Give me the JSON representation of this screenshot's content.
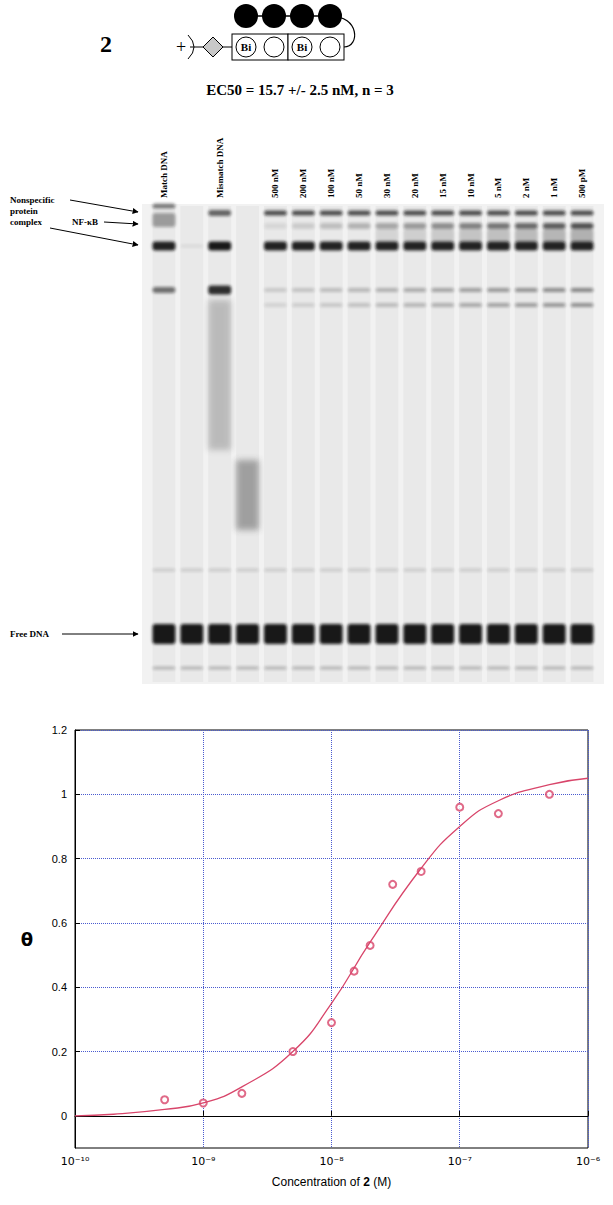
{
  "header": {
    "compound": "2",
    "ec50": "EC50 = 15.7 +/- 2.5 nM, n = 3",
    "schematic": {
      "charge": "+",
      "rings": [
        "Bi",
        null,
        "Bi",
        null
      ]
    }
  },
  "gel": {
    "lanes": [
      "Match DNA",
      null,
      "Mismatch DNA",
      null,
      "500 nM",
      "200 nM",
      "100 nM",
      "50 nM",
      "30 nM",
      "20 nM",
      "15 nM",
      "10 nM",
      "5 nM",
      "2 nM",
      "1 nM",
      "500 pM"
    ],
    "bands": {
      "nonspecific": "Nonspecific protein complex",
      "nfkb": "NF-κB",
      "free": "Free DNA"
    }
  },
  "chart_data": {
    "type": "scatter",
    "xlabel": "Concentration of 2 (M)",
    "ylabel": "θ",
    "log": "x",
    "grid": true,
    "xlim": [
      1e-10,
      1e-06
    ],
    "xticks": [
      {
        "value": 1e-10,
        "label": "10⁻¹⁰"
      },
      {
        "value": 1e-09,
        "label": "10⁻⁹"
      },
      {
        "value": 1e-08,
        "label": "10⁻⁸"
      },
      {
        "value": 1e-07,
        "label": "10⁻⁷"
      },
      {
        "value": 1e-06,
        "label": "10⁻⁶"
      }
    ],
    "ylim": [
      -0.1,
      1.2
    ],
    "yticks": [
      0,
      0.2,
      0.4,
      0.6,
      0.8,
      1,
      1.2
    ],
    "series": [
      {
        "type": "scatter",
        "color": "#d8456a",
        "marker": "emptyCircle",
        "x": [
          5e-10,
          1e-09,
          2e-09,
          5e-09,
          1e-08,
          1.5e-08,
          2e-08,
          3e-08,
          5e-08,
          1e-07,
          2e-07,
          5e-07
        ],
        "values": [
          0.05,
          0.04,
          0.07,
          0.2,
          0.29,
          0.45,
          0.53,
          0.72,
          0.76,
          0.96,
          0.94,
          1.0
        ]
      },
      {
        "type": "line",
        "color": "#d8456a",
        "line_style": "solid",
        "x": [
          1e-10,
          2e-10,
          5e-10,
          1e-09,
          2e-09,
          5e-09,
          1e-08,
          2e-08,
          5e-08,
          1e-07,
          2e-07,
          5e-07,
          1e-06
        ],
        "values": [
          0.0,
          0.005,
          0.02,
          0.04,
          0.09,
          0.2,
          0.35,
          0.54,
          0.77,
          0.9,
          0.98,
          1.03,
          1.05
        ]
      }
    ]
  }
}
